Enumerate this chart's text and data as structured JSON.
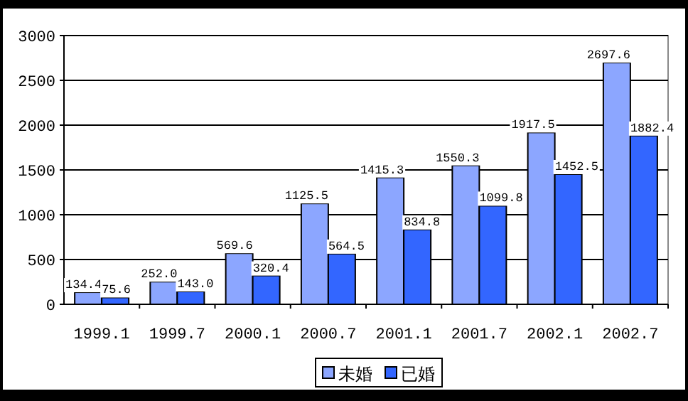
{
  "chart_data": {
    "type": "bar",
    "categories": [
      "1999.1",
      "1999.7",
      "2000.1",
      "2000.7",
      "2001.1",
      "2001.7",
      "2002.1",
      "2002.7"
    ],
    "series": [
      {
        "name": "未婚",
        "color": "#8ca6ff",
        "values": [
          134.4,
          252,
          569.6,
          1125.5,
          1415.3,
          1550.3,
          1917.5,
          2697.6
        ],
        "value_labels": [
          "134.4",
          "252.0",
          "569.6",
          "1125.5",
          "1415.3",
          "1550.3",
          "1917.5",
          "2697.6"
        ]
      },
      {
        "name": "已婚",
        "color": "#3366ff",
        "values": [
          75.6,
          143,
          320.4,
          564.5,
          834.8,
          1099.8,
          1452.5,
          1882.4
        ],
        "value_labels": [
          "75.6",
          "143.0",
          "320.4",
          "564.5",
          "834.8",
          "1099.8",
          "1452.5",
          "1882.4"
        ]
      }
    ],
    "ylim": [
      0,
      3000
    ],
    "yticks": [
      0,
      500,
      1000,
      1500,
      2000,
      2500,
      3000
    ],
    "grid": "y",
    "legend": "bottom"
  }
}
